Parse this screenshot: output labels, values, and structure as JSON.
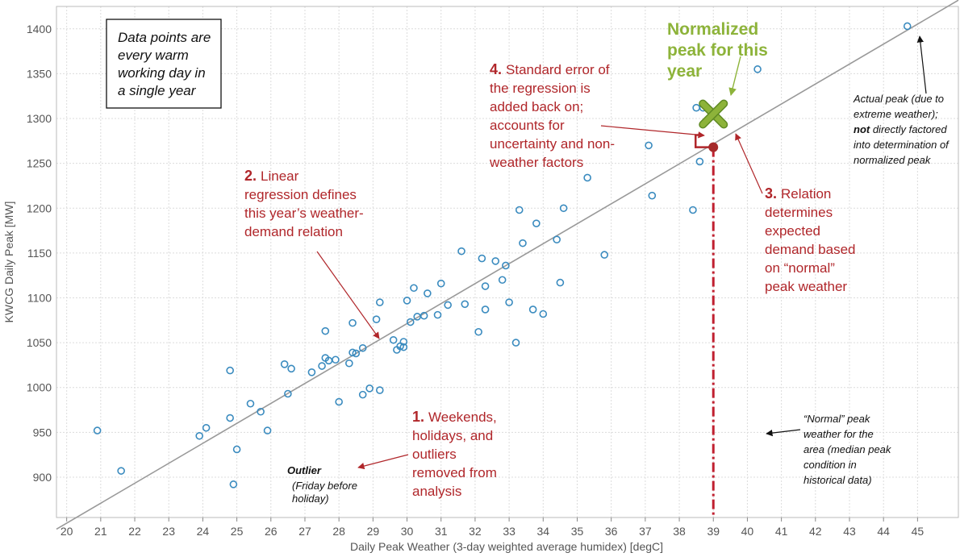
{
  "chart_data": {
    "type": "scatter",
    "xlabel": "Daily Peak Weather (3-day weighted average humidex)  [degC]",
    "ylabel": "KWCG Daily Peak [MW]",
    "xlim": [
      19.7,
      46.2
    ],
    "ylim": [
      855,
      1425
    ],
    "xticks": [
      20,
      21,
      22,
      23,
      24,
      25,
      26,
      27,
      28,
      29,
      30,
      31,
      32,
      33,
      34,
      35,
      36,
      37,
      38,
      39,
      40,
      41,
      42,
      43,
      44,
      45
    ],
    "yticks": [
      900,
      950,
      1000,
      1050,
      1100,
      1150,
      1200,
      1250,
      1300,
      1350,
      1400
    ],
    "grid": true,
    "points": [
      [
        20.9,
        952
      ],
      [
        21.6,
        907
      ],
      [
        23.9,
        946
      ],
      [
        24.1,
        955
      ],
      [
        24.8,
        1019
      ],
      [
        24.8,
        966
      ],
      [
        25.0,
        931
      ],
      [
        24.9,
        892
      ],
      [
        25.4,
        982
      ],
      [
        25.7,
        973
      ],
      [
        25.9,
        952
      ],
      [
        26.4,
        1026
      ],
      [
        26.5,
        993
      ],
      [
        26.6,
        1021
      ],
      [
        27.2,
        1017
      ],
      [
        27.5,
        1024
      ],
      [
        27.6,
        1063
      ],
      [
        27.6,
        1033
      ],
      [
        27.7,
        1030
      ],
      [
        27.9,
        1031
      ],
      [
        28.0,
        984
      ],
      [
        28.3,
        1027
      ],
      [
        28.4,
        1072
      ],
      [
        28.4,
        1039
      ],
      [
        28.5,
        1038
      ],
      [
        28.7,
        1044
      ],
      [
        28.7,
        992
      ],
      [
        28.9,
        999
      ],
      [
        29.1,
        1076
      ],
      [
        29.2,
        1095
      ],
      [
        29.2,
        997
      ],
      [
        29.6,
        1053
      ],
      [
        29.7,
        1042
      ],
      [
        29.8,
        1046
      ],
      [
        29.9,
        1051
      ],
      [
        29.9,
        1045
      ],
      [
        30.0,
        1097
      ],
      [
        30.1,
        1073
      ],
      [
        30.2,
        1111
      ],
      [
        30.3,
        1079
      ],
      [
        30.5,
        1080
      ],
      [
        30.6,
        1105
      ],
      [
        30.9,
        1081
      ],
      [
        31.0,
        1116
      ],
      [
        31.2,
        1092
      ],
      [
        31.6,
        1152
      ],
      [
        31.7,
        1093
      ],
      [
        32.1,
        1062
      ],
      [
        32.2,
        1144
      ],
      [
        32.3,
        1087
      ],
      [
        32.3,
        1113
      ],
      [
        32.6,
        1141
      ],
      [
        32.8,
        1120
      ],
      [
        32.9,
        1136
      ],
      [
        33.0,
        1095
      ],
      [
        33.2,
        1050
      ],
      [
        33.3,
        1198
      ],
      [
        33.4,
        1161
      ],
      [
        33.7,
        1087
      ],
      [
        33.8,
        1183
      ],
      [
        34.0,
        1082
      ],
      [
        34.4,
        1165
      ],
      [
        34.5,
        1117
      ],
      [
        34.6,
        1200
      ],
      [
        35.3,
        1234
      ],
      [
        35.8,
        1148
      ],
      [
        37.1,
        1270
      ],
      [
        37.2,
        1214
      ],
      [
        38.4,
        1198
      ],
      [
        38.5,
        1312
      ],
      [
        38.6,
        1252
      ],
      [
        38.7,
        1312
      ],
      [
        40.3,
        1355
      ],
      [
        44.7,
        1403
      ]
    ],
    "regression_line": {
      "x": [
        19.7,
        46.2
      ],
      "y": [
        842,
        1432
      ]
    },
    "expected_point": {
      "x": 39.0,
      "y": 1268
    },
    "normalized_peak": {
      "x": 39.0,
      "y": 1305
    },
    "normal_weather_x": 39.0,
    "annotations": {
      "box": [
        "Data points are",
        "every warm",
        "working day in",
        "a single year"
      ],
      "a1": {
        "num": "1.",
        "lines": [
          "Weekends,",
          "holidays, and",
          "outliers",
          "removed from",
          "analysis"
        ]
      },
      "a2": {
        "num": "2.",
        "lines": [
          "Linear",
          "regression defines",
          "this year’s weather-",
          "demand relation"
        ]
      },
      "a3": {
        "num": "3.",
        "lines": [
          "Relation",
          "determines",
          "expected",
          "demand based",
          "on “normal”",
          "peak weather"
        ]
      },
      "a4": {
        "num": "4.",
        "lines": [
          "Standard error of",
          "the  regression is",
          "added back on;",
          "accounts for",
          "uncertainty and non-",
          "weather factors"
        ]
      },
      "green": [
        "Normalized",
        "peak for this",
        "year"
      ],
      "actual": [
        "Actual peak (due to",
        "extreme weather);",
        "not directly factored",
        "into determination of",
        "normalized peak"
      ],
      "actual_bold": "not",
      "normal": [
        "“Normal” peak",
        "weather for the",
        "area (median peak",
        "condition in",
        "historical data)"
      ],
      "outlier_title": "Outlier",
      "outlier_sub": [
        "(Friday before",
        "holiday)"
      ]
    },
    "colors": {
      "points": "#3a8bbf",
      "line": "#999999",
      "grid": "#dcdcdc",
      "red": "#b0262a",
      "green": "#8db33a",
      "green_dark": "#5f8a23"
    }
  }
}
